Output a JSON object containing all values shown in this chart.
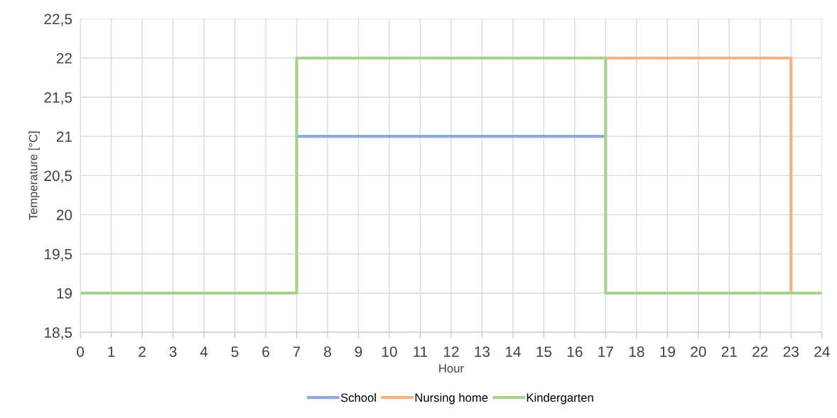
{
  "chart_data": {
    "type": "step",
    "xlabel": "Hour",
    "ylabel": "Temperature [°C]",
    "xlim": [
      0,
      24
    ],
    "xticks": [
      0,
      1,
      2,
      3,
      4,
      5,
      6,
      7,
      8,
      9,
      10,
      11,
      12,
      13,
      14,
      15,
      16,
      17,
      18,
      19,
      20,
      21,
      22,
      23,
      24
    ],
    "ylim": [
      18.5,
      22.5
    ],
    "yticks": [
      {
        "value": 18.5,
        "label": "18,5"
      },
      19,
      {
        "value": 19.5,
        "label": "19,5"
      },
      20,
      {
        "value": 20.5,
        "label": "20,5"
      },
      21,
      {
        "value": 21.5,
        "label": "21,5"
      },
      22,
      {
        "value": 22.5,
        "label": "22,5"
      }
    ],
    "grid": true,
    "legend": "bottom",
    "marker": "none",
    "line_style": "solid",
    "series": [
      {
        "name": "School",
        "color": "#8faadc",
        "x": [
          7,
          17
        ],
        "values": [
          21,
          21
        ]
      },
      {
        "name": "Nursing home",
        "color": "#f4b183",
        "x": [
          17,
          23
        ],
        "values": [
          22,
          19
        ]
      },
      {
        "name": "Kindergarten",
        "color": "#a9d18e",
        "x": [
          0,
          7,
          17,
          24
        ],
        "values": [
          19,
          22,
          19,
          19
        ]
      }
    ]
  }
}
